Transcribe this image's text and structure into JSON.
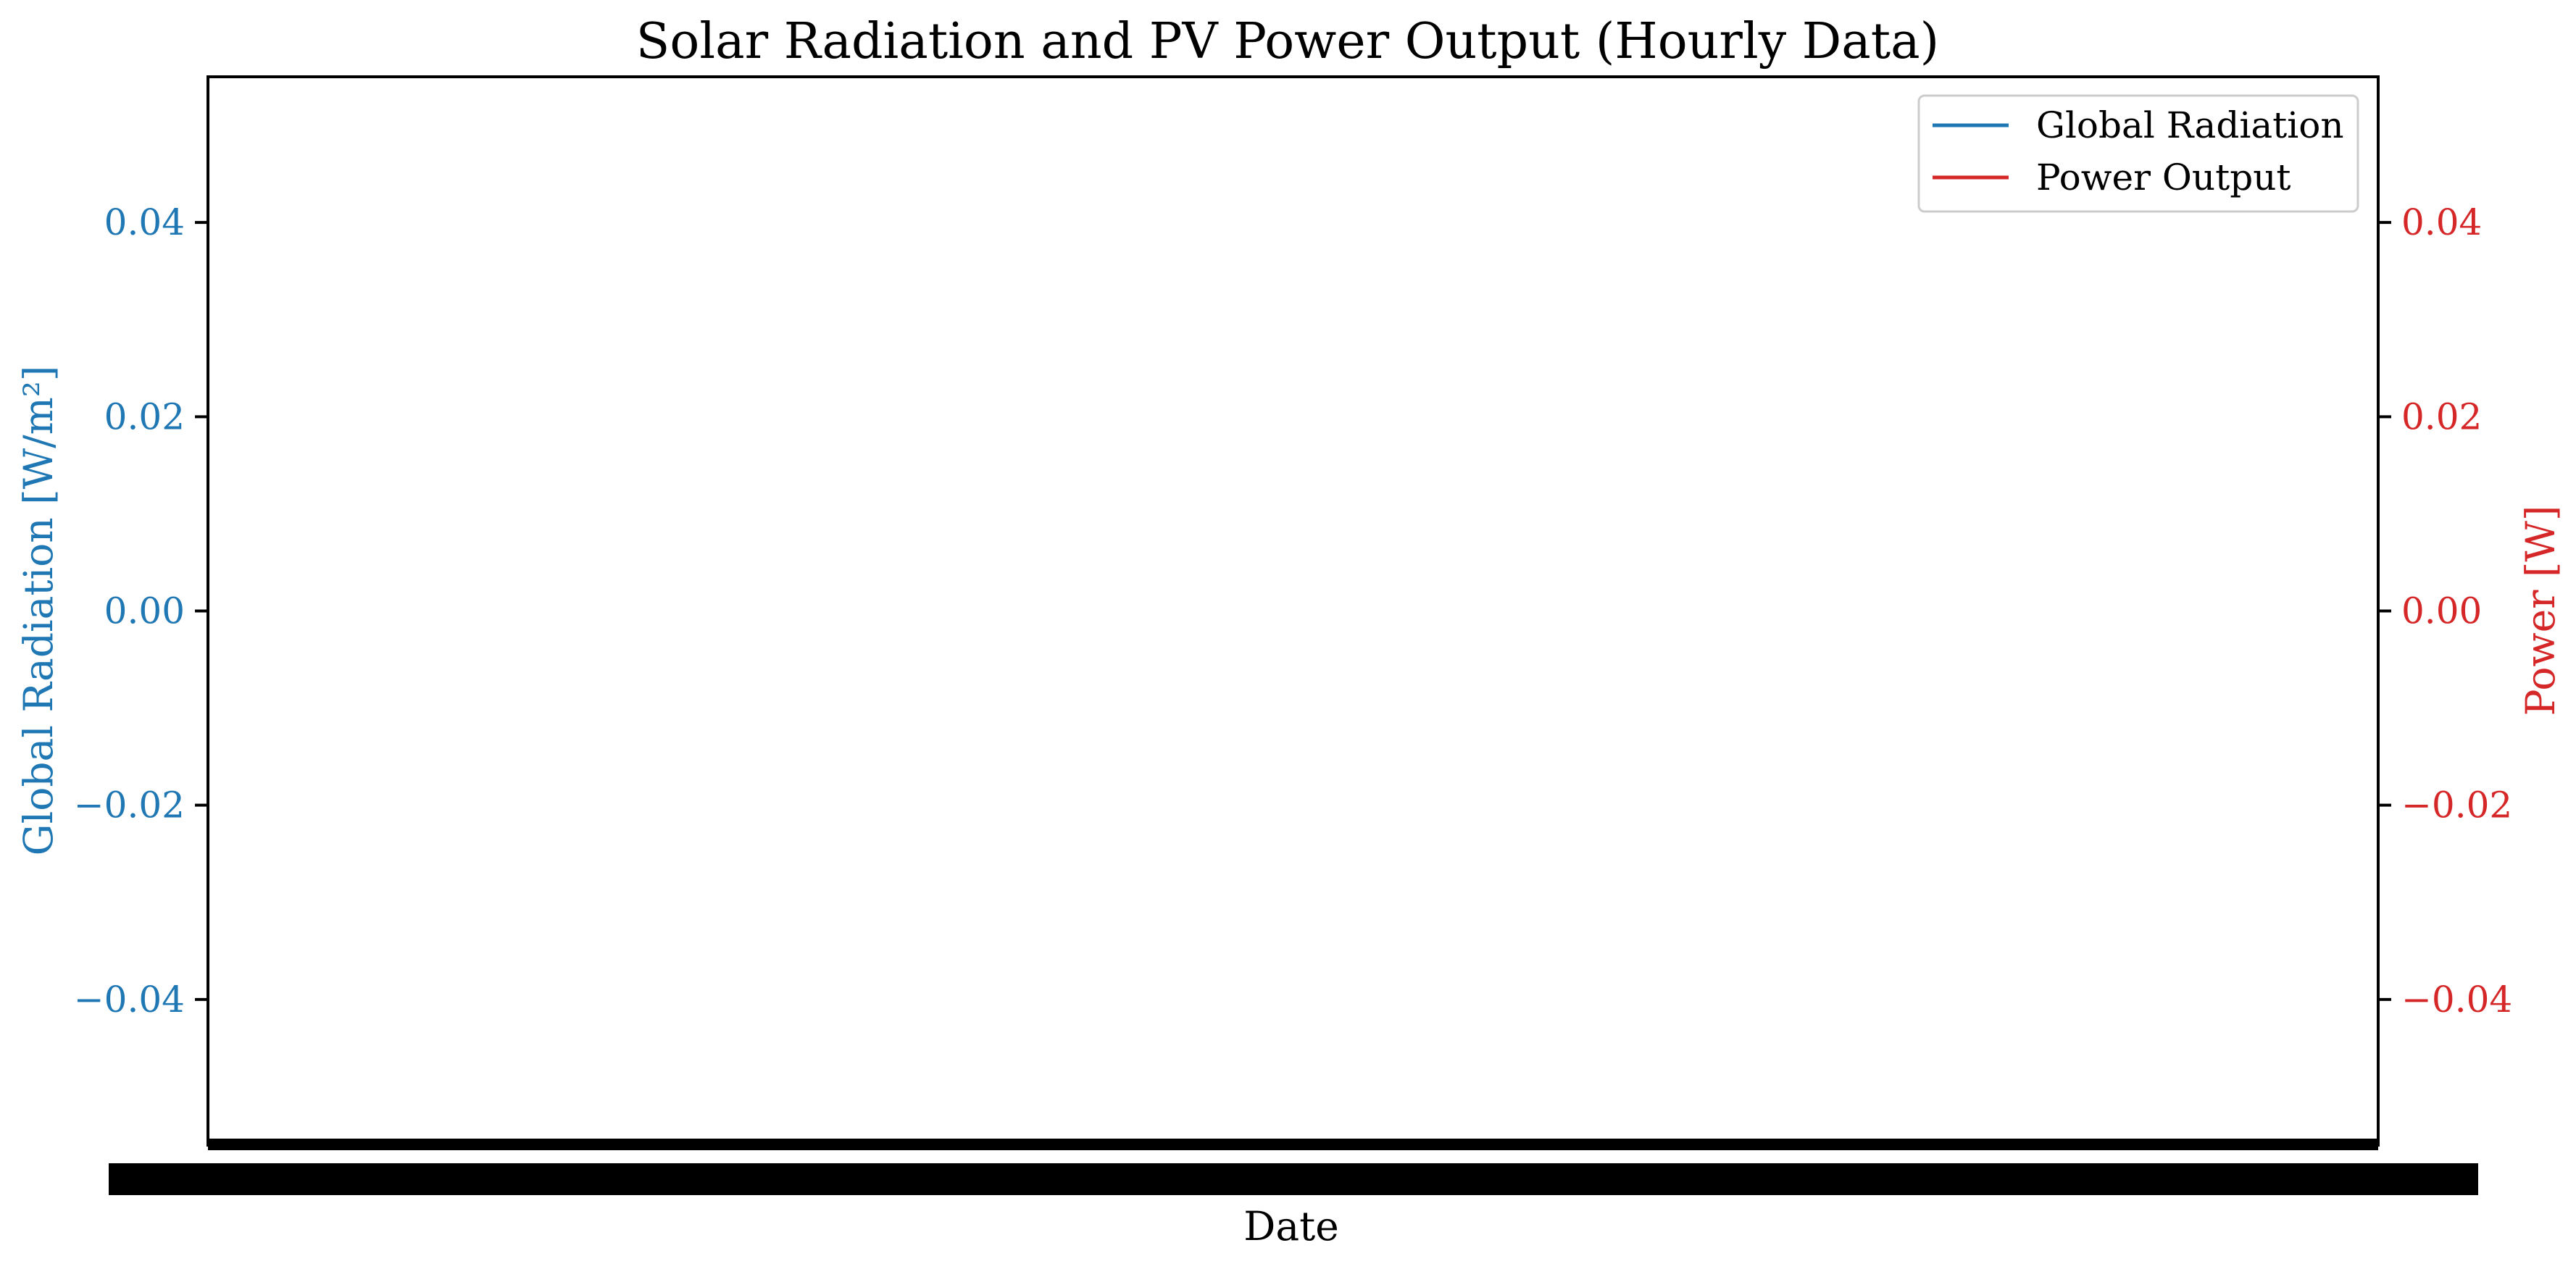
{
  "chart_data": {
    "type": "line",
    "title": "Solar Radiation and PV Power Output (Hourly Data)",
    "xlabel": "Date",
    "ylabel_left": "Global Radiation [W/m²]",
    "ylabel_right": "Power [W]",
    "ylim_left": [
      -0.055,
      0.055
    ],
    "ylim_right": [
      -0.055,
      0.055
    ],
    "yticks_left": [
      "0.04",
      "0.02",
      "0.00",
      "−0.02",
      "−0.04"
    ],
    "yticks_right": [
      "0.04",
      "0.02",
      "0.00",
      "−0.02",
      "−0.04"
    ],
    "ytick_values": [
      0.04,
      0.02,
      0.0,
      -0.02,
      -0.04
    ],
    "legend_position": "top-right",
    "grid": false,
    "series": [
      {
        "name": "Global Radiation",
        "color": "#1f77b4",
        "axis": "left",
        "values": []
      },
      {
        "name": "Power Output",
        "color": "#d62728",
        "axis": "right",
        "values": []
      }
    ]
  }
}
